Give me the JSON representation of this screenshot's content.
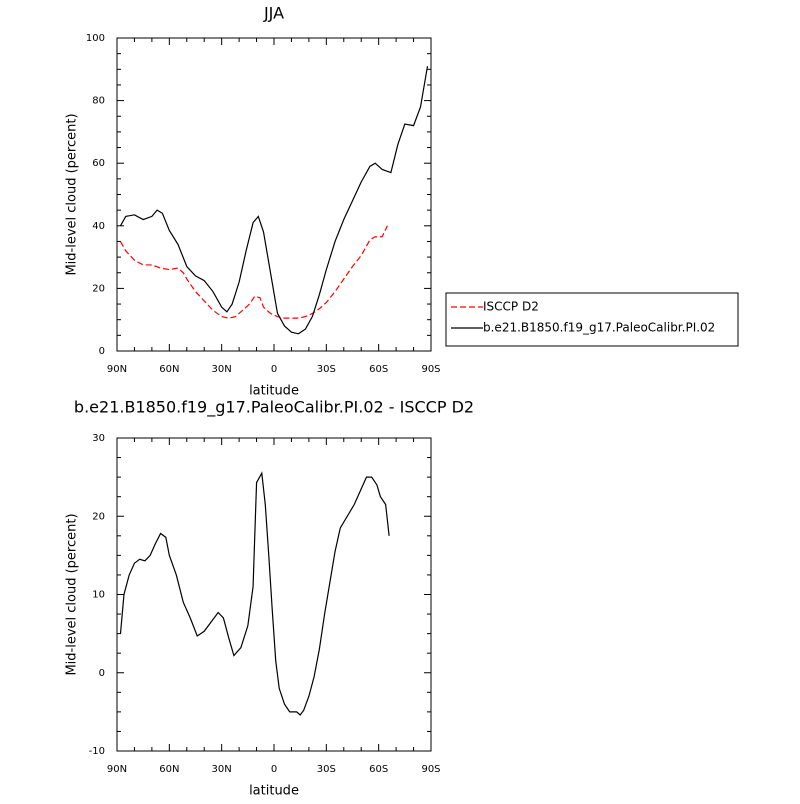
{
  "chart_data": [
    {
      "type": "line",
      "title": "JJA",
      "xlabel": "latitude",
      "ylabel": "Mid-level cloud (percent)",
      "xlim": [
        90,
        -90
      ],
      "xticks": [
        {
          "value": 90,
          "label": "90N"
        },
        {
          "value": 60,
          "label": "60N"
        },
        {
          "value": 30,
          "label": "30N"
        },
        0,
        {
          "value": -30,
          "label": "30S"
        },
        {
          "value": -60,
          "label": "60S"
        },
        {
          "value": -90,
          "label": "90S"
        }
      ],
      "ylim": [
        0,
        100
      ],
      "yticks": [
        0,
        20,
        40,
        60,
        80,
        100
      ],
      "legend": "right",
      "series": [
        {
          "name": "ISCCP D2",
          "color": "#ff0000",
          "dashed": true,
          "x": [
            88,
            85,
            80,
            75,
            70,
            65,
            60,
            55,
            52,
            50,
            45,
            40,
            35,
            30,
            26,
            22,
            18,
            14,
            11,
            8,
            6,
            2,
            -2,
            -6,
            -10,
            -14,
            -18,
            -22,
            -26,
            -30,
            -35,
            -40,
            -45,
            -50,
            -55,
            -58,
            -62,
            -65
          ],
          "values": [
            35,
            32,
            29,
            27.5,
            27.5,
            26.5,
            26,
            26.5,
            25,
            23,
            19,
            16,
            13,
            11,
            10.5,
            11,
            13,
            15,
            17.5,
            17,
            14,
            12,
            11,
            10.5,
            10.5,
            10.5,
            11,
            12,
            13.5,
            15.5,
            19,
            23,
            27,
            30.5,
            35.5,
            36.5,
            36.5,
            40
          ]
        },
        {
          "name": "b.e21.B1850.f19_g17.PaleoCalibr.PI.02",
          "color": "#000000",
          "dashed": false,
          "x": [
            88,
            85,
            80,
            75,
            70,
            67,
            64,
            60,
            55,
            50,
            45,
            40,
            35,
            30,
            27,
            24,
            20,
            16,
            12,
            9,
            6,
            2,
            -2,
            -6,
            -10,
            -14,
            -18,
            -22,
            -26,
            -30,
            -35,
            -40,
            -45,
            -50,
            -55,
            -58,
            -62,
            -67,
            -71,
            -75,
            -80,
            -84,
            -88
          ],
          "values": [
            40,
            43,
            43.5,
            42,
            43,
            45,
            44,
            38.5,
            34,
            27,
            24,
            22.5,
            19,
            14,
            12.5,
            15,
            22,
            32,
            41,
            43,
            38,
            25,
            12,
            8,
            6,
            5.5,
            7,
            11,
            18,
            26,
            35,
            42,
            48,
            54,
            59,
            60,
            58,
            57,
            66,
            72.5,
            72,
            78,
            91
          ]
        }
      ]
    },
    {
      "type": "line",
      "title": "b.e21.B1850.f19_g17.PaleoCalibr.PI.02 - ISCCP D2",
      "xlabel": "latitude",
      "ylabel": "Mid-level cloud (percent)",
      "xlim": [
        90,
        -90
      ],
      "xticks": [
        {
          "value": 90,
          "label": "90N"
        },
        {
          "value": 60,
          "label": "60N"
        },
        {
          "value": 30,
          "label": "30N"
        },
        0,
        {
          "value": -30,
          "label": "30S"
        },
        {
          "value": -60,
          "label": "60S"
        },
        {
          "value": -90,
          "label": "90S"
        }
      ],
      "ylim": [
        -10,
        30
      ],
      "yticks": [
        -10,
        0,
        10,
        20,
        30
      ],
      "series": [
        {
          "color": "#000000",
          "dashed": false,
          "x": [
            88,
            86,
            83,
            80,
            77,
            74,
            71,
            68,
            65,
            62,
            60,
            56,
            52,
            48,
            44,
            40,
            36,
            32,
            29,
            26,
            23,
            19,
            15,
            12,
            10,
            7,
            5,
            3,
            1,
            -1,
            -3,
            -6,
            -9,
            -13,
            -15,
            -17,
            -20,
            -23,
            -26,
            -29,
            -32,
            -35,
            -38,
            -42,
            -46,
            -50,
            -53,
            -56,
            -59,
            -61,
            -64,
            -66
          ],
          "values": [
            5,
            10,
            12.5,
            14,
            14.5,
            14.3,
            15,
            16.5,
            17.8,
            17.3,
            15,
            12.5,
            9,
            7,
            4.7,
            5.3,
            6.5,
            7.7,
            7,
            4.5,
            2.2,
            3.2,
            6,
            11,
            24.3,
            25.5,
            21.5,
            15,
            8,
            1.5,
            -2,
            -4,
            -5,
            -5,
            -5.4,
            -4.8,
            -3,
            -0.5,
            3,
            7.5,
            11.5,
            15.5,
            18.5,
            20,
            21.5,
            23.5,
            25,
            25,
            24,
            22.5,
            21.5,
            17.5
          ]
        }
      ]
    }
  ]
}
